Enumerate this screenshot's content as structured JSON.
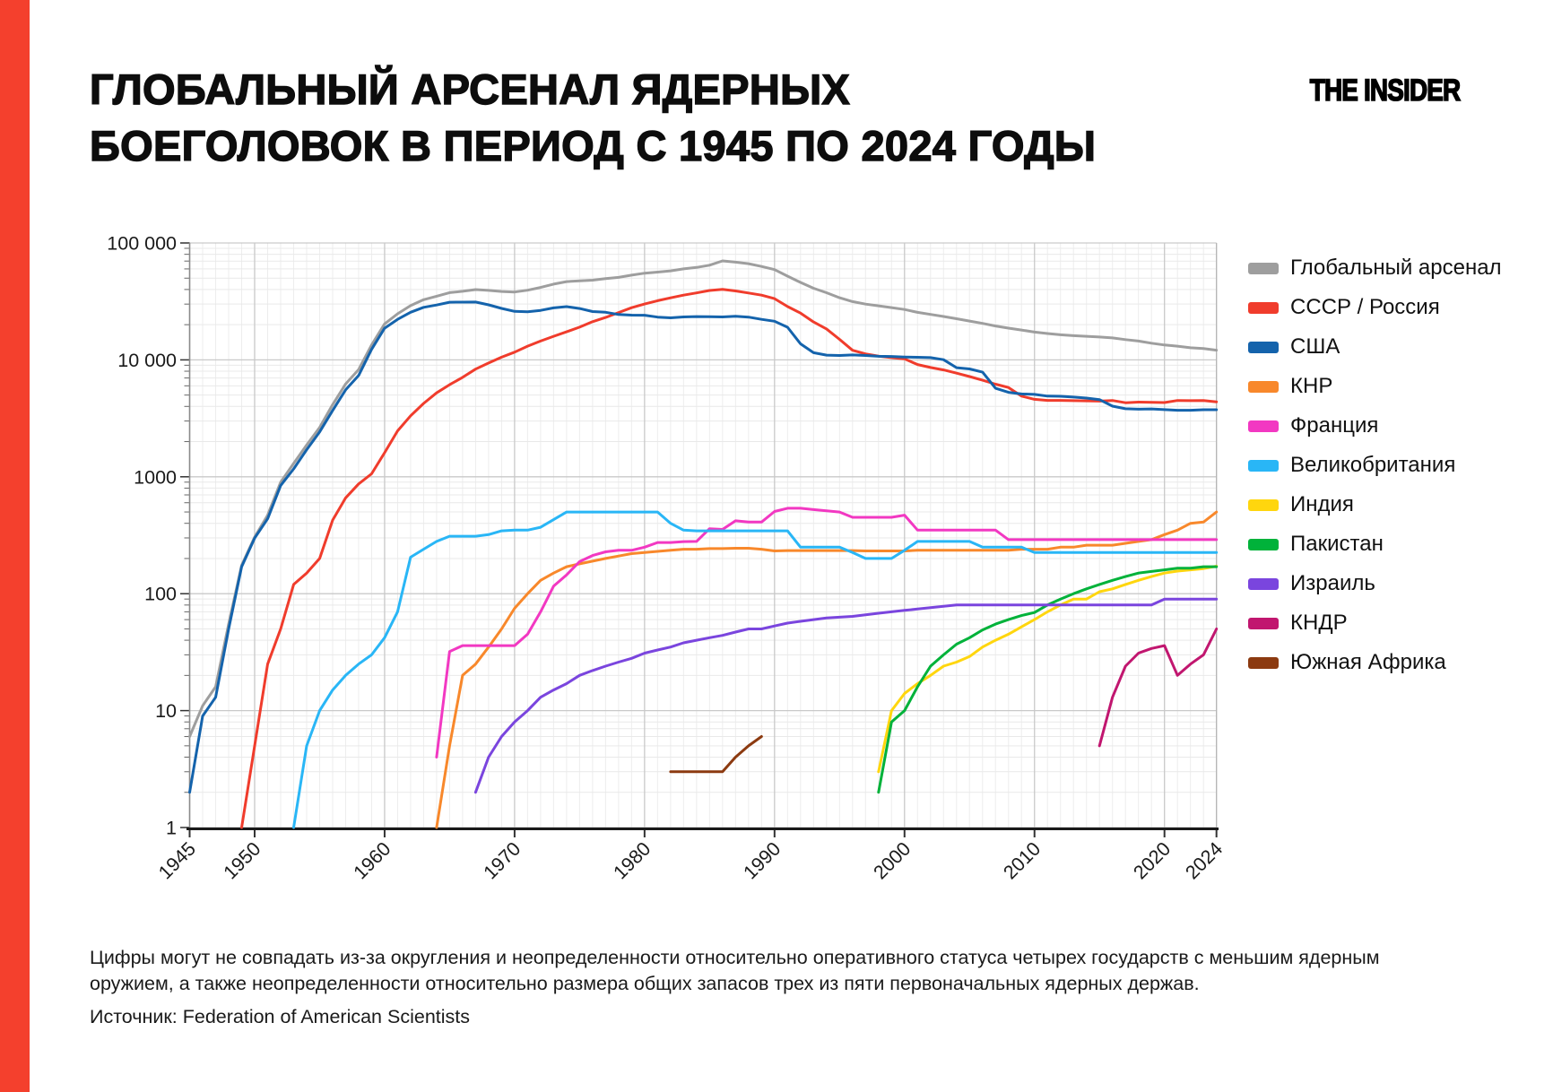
{
  "page": {
    "accent_color": "#F4402D",
    "background": "#FFFFFF"
  },
  "header": {
    "title": "ГЛОБАЛЬНЫЙ АРСЕНАЛ ЯДЕРНЫХ\nБОЕГОЛОВОК В ПЕРИОД С 1945 ПО 2024 ГОДЫ",
    "logo": "THE INSIDER"
  },
  "footer": {
    "note": "Цифры могут не совпадать из-за округления и неопределенности относительно оперативного статуса четырех государств с меньшим ядерным оружием, а также неопределенности относительно размера общих запасов трех из пяти первоначальных ядерных держав.",
    "source": "Источник: Federation of American Scientists"
  },
  "chart_data": {
    "type": "line",
    "title": "Глобальный арсенал ядерных боеголовок в период с 1945 по 2024 годы",
    "xlabel": "",
    "ylabel": "",
    "x_axis": {
      "range": [
        1945,
        2024
      ],
      "ticks": [
        1945,
        1950,
        1960,
        1970,
        1980,
        1990,
        2000,
        2010,
        2020,
        2024
      ]
    },
    "y_axis": {
      "scale": "log",
      "range": [
        1,
        100000
      ],
      "ticks": [
        1,
        10,
        100,
        1000,
        10000,
        100000
      ],
      "tick_labels": [
        "1",
        "10",
        "100",
        "1000",
        "10 000",
        "100 000"
      ]
    },
    "grid": true,
    "legend_position": "right",
    "series": [
      {
        "id": "global",
        "label": "Глобальный арсенал",
        "color": "#9E9E9E",
        "start": 1945,
        "values": [
          6,
          11,
          16,
          55,
          175,
          305,
          470,
          900,
          1300,
          1870,
          2640,
          4140,
          6230,
          8250,
          13400,
          20290,
          24780,
          29100,
          32680,
          35040,
          37620,
          38590,
          39930,
          39300,
          38450,
          38050,
          39400,
          41640,
          44450,
          46750,
          47450,
          48040,
          49540,
          50780,
          53060,
          55170,
          56290,
          57790,
          60020,
          61800,
          64500,
          70300,
          68500,
          66500,
          63000,
          59200,
          52000,
          46000,
          41000,
          37500,
          34000,
          31500,
          30000,
          29000,
          28000,
          27000,
          25500,
          24500,
          23500,
          22500,
          21500,
          20500,
          19500,
          18700,
          18000,
          17300,
          16800,
          16400,
          16100,
          15900,
          15700,
          15400,
          14900,
          14500,
          13900,
          13400,
          13100,
          12700,
          12500,
          12100
        ]
      },
      {
        "id": "ussr_russia",
        "label": "СССР / Россия",
        "color": "#F03C2C",
        "start": 1949,
        "values": [
          1,
          5,
          25,
          50,
          120,
          150,
          200,
          426,
          660,
          869,
          1060,
          1605,
          2471,
          3322,
          4238,
          5221,
          6129,
          7089,
          8339,
          9399,
          10538,
          11643,
          13092,
          14478,
          15915,
          17385,
          19055,
          21205,
          23044,
          25393,
          27935,
          30062,
          32049,
          33952,
          35804,
          37431,
          39197,
          40159,
          38859,
          37333,
          35805,
          33417,
          28595,
          25155,
          21101,
          18399,
          14978,
          12085,
          11264,
          10764,
          10451,
          10201,
          9126,
          8600,
          8200,
          7700,
          7200,
          6700,
          6200,
          5800,
          4900,
          4600,
          4500,
          4500,
          4480,
          4460,
          4440,
          4490,
          4300,
          4350,
          4330,
          4315,
          4495,
          4477,
          4489,
          4380
        ]
      },
      {
        "id": "usa",
        "label": "США",
        "color": "#1463AC",
        "start": 1945,
        "values": [
          2,
          9,
          13,
          50,
          170,
          299,
          438,
          841,
          1169,
          1703,
          2422,
          3692,
          5543,
          7345,
          12298,
          18638,
          22229,
          25540,
          28133,
          29463,
          31139,
          31175,
          31255,
          29561,
          27552,
          26008,
          25830,
          26516,
          27835,
          28537,
          27519,
          25914,
          25542,
          24418,
          24138,
          24104,
          23208,
          22886,
          23305,
          23459,
          23368,
          23317,
          23575,
          23205,
          22217,
          21392,
          19008,
          13708,
          11511,
          10979,
          10904,
          11011,
          10903,
          10732,
          10685,
          10577,
          10526,
          10457,
          10027,
          8570,
          8360,
          7853,
          5709,
          5273,
          5113,
          5066,
          4897,
          4881,
          4804,
          4717,
          4571,
          4018,
          3822,
          3785,
          3805,
          3750,
          3708,
          3708,
          3748,
          3748
        ]
      },
      {
        "id": "china",
        "label": "КНР",
        "color": "#F8882B",
        "start": 1964,
        "values": [
          1,
          5,
          20,
          25,
          35,
          50,
          75,
          100,
          130,
          150,
          170,
          180,
          190,
          200,
          210,
          220,
          225,
          230,
          235,
          240,
          240,
          243,
          243,
          245,
          245,
          240,
          232,
          234,
          234,
          234,
          234,
          234,
          234,
          232,
          232,
          232,
          232,
          235,
          235,
          235,
          235,
          235,
          235,
          235,
          235,
          240,
          240,
          240,
          250,
          250,
          260,
          260,
          260,
          270,
          280,
          290,
          320,
          350,
          400,
          410,
          500
        ]
      },
      {
        "id": "france",
        "label": "Франция",
        "color": "#F238C2",
        "start": 1964,
        "values": [
          4,
          32,
          36,
          36,
          36,
          36,
          36,
          45,
          70,
          116,
          145,
          188,
          212,
          228,
          235,
          235,
          250,
          274,
          274,
          279,
          280,
          360,
          355,
          420,
          410,
          410,
          505,
          538,
          538,
          524,
          512,
          500,
          450,
          450,
          450,
          450,
          470,
          350,
          350,
          350,
          350,
          350,
          350,
          350,
          290,
          290,
          290,
          290,
          290,
          290,
          290,
          290,
          290,
          290,
          290,
          290,
          290,
          290,
          290,
          290,
          290
        ]
      },
      {
        "id": "uk",
        "label": "Великобритания",
        "color": "#29B6F6",
        "start": 1953,
        "values": [
          1,
          5,
          10,
          15,
          20,
          25,
          30,
          42,
          70,
          205,
          240,
          280,
          310,
          310,
          310,
          320,
          345,
          350,
          350,
          370,
          430,
          500,
          500,
          500,
          500,
          500,
          500,
          500,
          500,
          400,
          350,
          345,
          345,
          345,
          345,
          345,
          345,
          345,
          345,
          250,
          250,
          250,
          250,
          225,
          200,
          200,
          200,
          235,
          280,
          280,
          280,
          280,
          280,
          250,
          250,
          250,
          250,
          225,
          225,
          225,
          225,
          225,
          225,
          225,
          225,
          225,
          225,
          225,
          225,
          225,
          225,
          225
        ]
      },
      {
        "id": "india",
        "label": "Индия",
        "color": "#FFD60E",
        "start": 1998,
        "values": [
          3,
          10,
          14,
          17,
          20,
          24,
          26,
          29,
          35,
          40,
          45,
          52,
          60,
          70,
          80,
          90,
          90,
          104,
          110,
          120,
          130,
          140,
          150,
          156,
          160,
          164,
          172
        ]
      },
      {
        "id": "pakistan",
        "label": "Пакистан",
        "color": "#00B23A",
        "start": 1998,
        "values": [
          2,
          8,
          10,
          16,
          24,
          30,
          37,
          42,
          49,
          55,
          60,
          65,
          69,
          80,
          90,
          100,
          110,
          120,
          130,
          140,
          150,
          155,
          160,
          165,
          165,
          170,
          170
        ]
      },
      {
        "id": "israel",
        "label": "Израиль",
        "color": "#7A45DE",
        "start": 1967,
        "values": [
          2,
          4,
          6,
          8,
          10,
          13,
          15,
          17,
          20,
          22,
          24,
          26,
          28,
          31,
          33,
          35,
          38,
          40,
          42,
          44,
          47,
          50,
          50,
          53,
          56,
          58,
          60,
          62,
          63,
          64,
          66,
          68,
          70,
          72,
          74,
          76,
          78,
          80,
          80,
          80,
          80,
          80,
          80,
          80,
          80,
          80,
          80,
          80,
          80,
          80,
          80,
          80,
          80,
          90,
          90,
          90,
          90,
          90
        ]
      },
      {
        "id": "north_korea",
        "label": "КНДР",
        "color": "#C1166F",
        "start": 2015,
        "values": [
          5,
          13,
          24,
          31,
          34,
          36,
          20,
          25,
          30,
          50
        ]
      },
      {
        "id": "south_africa",
        "label": "Южная Африка",
        "color": "#8C3A10",
        "start": 1982,
        "values": [
          3,
          3,
          3,
          3,
          3,
          4,
          5,
          6
        ]
      }
    ]
  }
}
